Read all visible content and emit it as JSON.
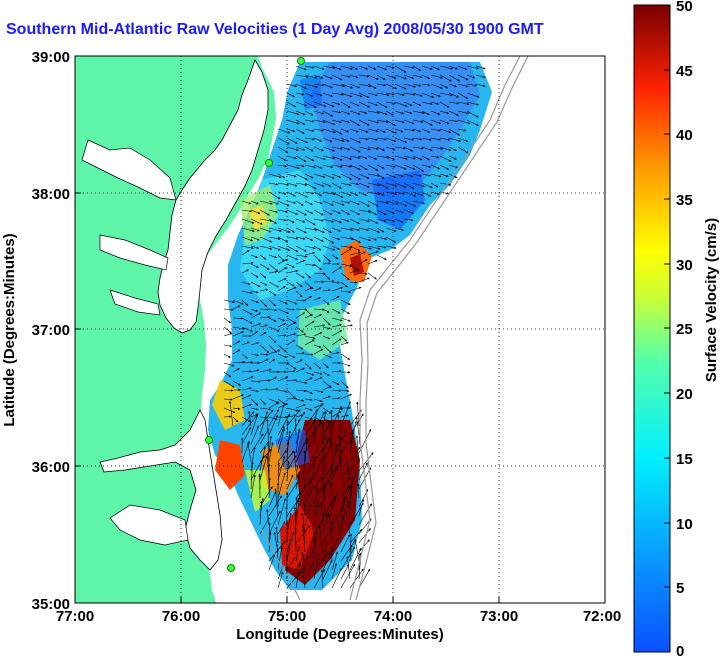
{
  "title": "Southern Mid-Atlantic Raw Velocities (1 Day Avg) 2008/05/30 1900 GMT",
  "x_axis": {
    "label": "Longitude (Degrees:Minutes)",
    "ticks": [
      "77:00",
      "76:00",
      "75:00",
      "74:00",
      "73:00",
      "72:00"
    ]
  },
  "y_axis": {
    "label": "Latitude (Degrees:Minutes)",
    "ticks": [
      "39:00",
      "38:00",
      "37:00",
      "36:00",
      "35:00"
    ]
  },
  "colorbar": {
    "label": "Surface Velocity (cm/s)",
    "ticks": [
      "50",
      "45",
      "40",
      "35",
      "30",
      "25",
      "20",
      "15",
      "10",
      "5",
      "0"
    ],
    "range": [
      0,
      50
    ],
    "colormap": "jet"
  },
  "map": {
    "lon_range": [
      -77,
      -72
    ],
    "lat_range": [
      35,
      39
    ],
    "grid": true,
    "land_color": "#5ef5a8",
    "water_color": "#ffffff",
    "stations": [
      {
        "lon": -74.85,
        "lat": 38.98
      },
      {
        "lon": -75.1,
        "lat": 38.22
      },
      {
        "lon": -75.68,
        "lat": 36.2
      },
      {
        "lon": -75.47,
        "lat": 35.25
      }
    ]
  }
}
